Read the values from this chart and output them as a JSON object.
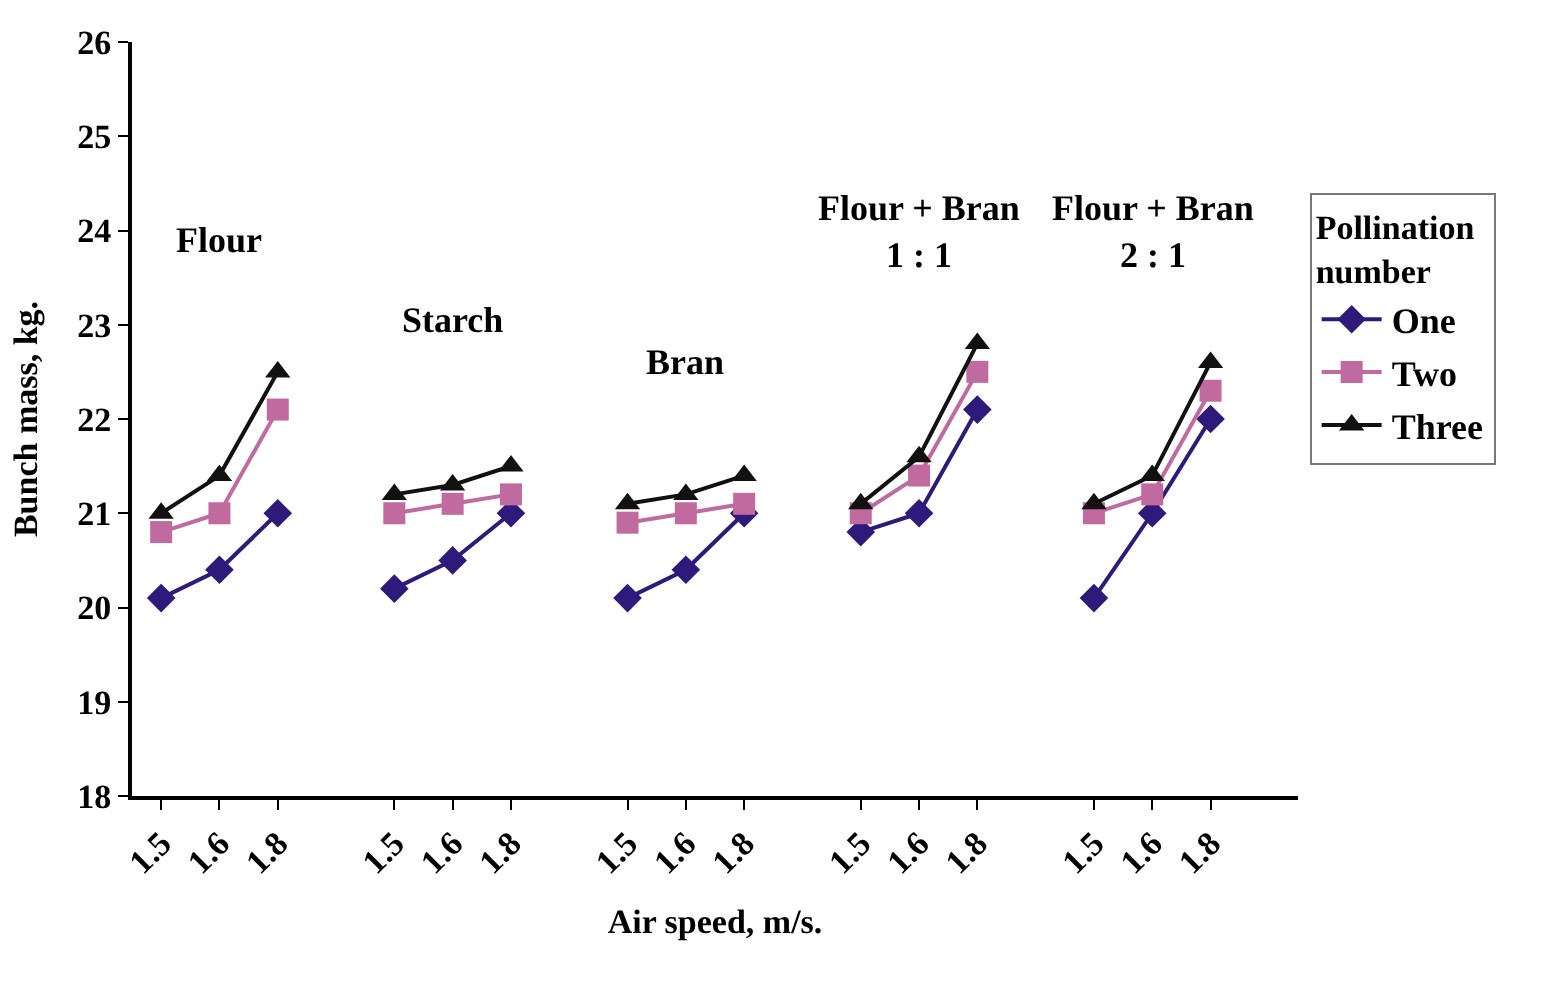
{
  "chart_data": {
    "type": "line",
    "xlabel": "Air speed, m/s.",
    "ylabel": "Bunch mass, kg.",
    "legend_title": "Pollination\nnumber",
    "categories": [
      "1.5",
      "1.6",
      "1.8",
      null,
      "1.5",
      "1.6",
      "1.8",
      null,
      "1.5",
      "1.6",
      "1.8",
      null,
      "1.5",
      "1.6",
      "1.8",
      null,
      "1.5",
      "1.6",
      "1.8",
      null
    ],
    "series": [
      {
        "name": "One",
        "color": "#2e1a7a",
        "marker": "diamond",
        "values": [
          20.1,
          20.4,
          21.0,
          null,
          20.2,
          20.5,
          21.0,
          null,
          20.1,
          20.4,
          21.0,
          null,
          20.8,
          21.0,
          22.1,
          null,
          20.1,
          21.0,
          22.0,
          null
        ]
      },
      {
        "name": "Two",
        "color": "#c06aa0",
        "marker": "square",
        "values": [
          20.8,
          21.0,
          22.1,
          null,
          21.0,
          21.1,
          21.2,
          null,
          20.9,
          21.0,
          21.1,
          null,
          21.0,
          21.4,
          22.5,
          null,
          21.0,
          21.2,
          22.3,
          null
        ]
      },
      {
        "name": "Three",
        "color": "#111111",
        "marker": "triangle",
        "values": [
          21.0,
          21.4,
          22.5,
          null,
          21.2,
          21.3,
          21.5,
          null,
          21.1,
          21.2,
          21.4,
          null,
          21.1,
          21.6,
          22.8,
          null,
          21.1,
          21.4,
          22.6,
          null
        ]
      }
    ],
    "annotations": [
      "Flour",
      "Starch",
      "Bran",
      "Flour + Bran\n1 : 1",
      "Flour + Bran\n2 : 1"
    ],
    "ylim": [
      18,
      26
    ],
    "yticks": [
      18,
      19,
      20,
      21,
      22,
      23,
      24,
      25,
      26
    ],
    "legend": "right",
    "line_style": "solid"
  }
}
